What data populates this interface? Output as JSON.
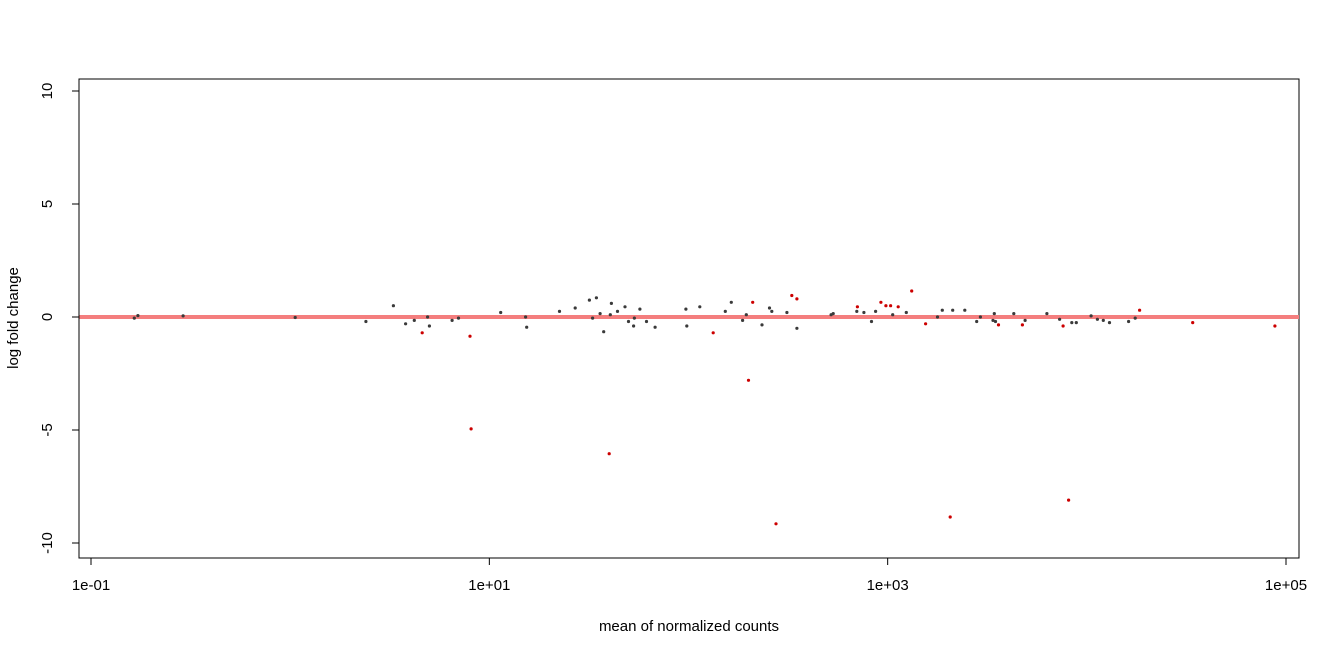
{
  "chart_data": {
    "type": "scatter",
    "title": "",
    "xlabel": "mean of normalized counts",
    "ylabel": "log fold change",
    "x_scale": "log10",
    "xlim": [
      0.1,
      100000
    ],
    "ylim": [
      -10,
      10
    ],
    "x_ticks": [
      {
        "value": 0.1,
        "label": "1e-01"
      },
      {
        "value": 10,
        "label": "1e+01"
      },
      {
        "value": 1000,
        "label": "1e+03"
      },
      {
        "value": 100000,
        "label": "1e+05"
      }
    ],
    "y_ticks": [
      {
        "value": 10,
        "label": "10"
      },
      {
        "value": 5,
        "label": "5"
      },
      {
        "value": 0,
        "label": "0"
      },
      {
        "value": -5,
        "label": "-5"
      },
      {
        "value": -10,
        "label": "-10"
      }
    ],
    "reference_line": {
      "y": 0,
      "color": "#f47e7e"
    },
    "grid": false,
    "legend": "none",
    "series": [
      {
        "color": "#3a3a3a",
        "points": [
          {
            "x": 0.165,
            "y": -0.05
          },
          {
            "x": 0.172,
            "y": 0.06
          },
          {
            "x": 0.29,
            "y": 0.05
          },
          {
            "x": 1.06,
            "y": -0.02
          },
          {
            "x": 2.4,
            "y": -0.2
          },
          {
            "x": 3.3,
            "y": 0.5
          },
          {
            "x": 3.8,
            "y": -0.3
          },
          {
            "x": 4.2,
            "y": -0.15
          },
          {
            "x": 4.9,
            "y": 0.0
          },
          {
            "x": 5.0,
            "y": -0.4
          },
          {
            "x": 6.5,
            "y": -0.15
          },
          {
            "x": 7.0,
            "y": -0.05
          },
          {
            "x": 11.4,
            "y": 0.2
          },
          {
            "x": 15.2,
            "y": 0.0
          },
          {
            "x": 15.4,
            "y": -0.45
          },
          {
            "x": 22.5,
            "y": 0.25
          },
          {
            "x": 27.0,
            "y": 0.4
          },
          {
            "x": 31.8,
            "y": 0.75
          },
          {
            "x": 33.0,
            "y": -0.05
          },
          {
            "x": 34.5,
            "y": 0.85
          },
          {
            "x": 36.0,
            "y": 0.15
          },
          {
            "x": 37.5,
            "y": -0.65
          },
          {
            "x": 40.5,
            "y": 0.1
          },
          {
            "x": 41.0,
            "y": 0.6
          },
          {
            "x": 44.0,
            "y": 0.25
          },
          {
            "x": 48.0,
            "y": 0.45
          },
          {
            "x": 50.0,
            "y": -0.2
          },
          {
            "x": 53.0,
            "y": -0.4
          },
          {
            "x": 53.5,
            "y": -0.05
          },
          {
            "x": 57.0,
            "y": 0.35
          },
          {
            "x": 61.5,
            "y": -0.2
          },
          {
            "x": 68.0,
            "y": -0.45
          },
          {
            "x": 97.0,
            "y": 0.35
          },
          {
            "x": 98.0,
            "y": -0.4
          },
          {
            "x": 114.0,
            "y": 0.45
          },
          {
            "x": 153.0,
            "y": 0.25
          },
          {
            "x": 164.0,
            "y": 0.65
          },
          {
            "x": 187.0,
            "y": -0.15
          },
          {
            "x": 195.0,
            "y": 0.1
          },
          {
            "x": 234.0,
            "y": -0.35
          },
          {
            "x": 255.0,
            "y": 0.4
          },
          {
            "x": 262.0,
            "y": 0.25
          },
          {
            "x": 312.0,
            "y": 0.2
          },
          {
            "x": 350.0,
            "y": -0.5
          },
          {
            "x": 520.0,
            "y": 0.1
          },
          {
            "x": 533.0,
            "y": 0.15
          },
          {
            "x": 700.0,
            "y": 0.25
          },
          {
            "x": 760.0,
            "y": 0.2
          },
          {
            "x": 830.0,
            "y": -0.2
          },
          {
            "x": 870.0,
            "y": 0.25
          },
          {
            "x": 1060.0,
            "y": 0.1
          },
          {
            "x": 1240.0,
            "y": 0.2
          },
          {
            "x": 1780.0,
            "y": 0.0
          },
          {
            "x": 1880.0,
            "y": 0.3
          },
          {
            "x": 2120.0,
            "y": 0.3
          },
          {
            "x": 2440.0,
            "y": 0.3
          },
          {
            "x": 2800.0,
            "y": -0.2
          },
          {
            "x": 2920.0,
            "y": 0.0
          },
          {
            "x": 3380.0,
            "y": -0.15
          },
          {
            "x": 3430.0,
            "y": 0.15
          },
          {
            "x": 3480.0,
            "y": -0.2
          },
          {
            "x": 4300.0,
            "y": 0.15
          },
          {
            "x": 4900.0,
            "y": -0.15
          },
          {
            "x": 6300.0,
            "y": 0.15
          },
          {
            "x": 7300.0,
            "y": -0.1
          },
          {
            "x": 8400.0,
            "y": -0.25
          },
          {
            "x": 8850.0,
            "y": -0.25
          },
          {
            "x": 10500.0,
            "y": 0.05
          },
          {
            "x": 11300.0,
            "y": -0.1
          },
          {
            "x": 12100.0,
            "y": -0.15
          },
          {
            "x": 13000.0,
            "y": -0.25
          },
          {
            "x": 16200.0,
            "y": -0.2
          },
          {
            "x": 17500.0,
            "y": -0.05
          }
        ]
      },
      {
        "color": "#cc0000",
        "points": [
          {
            "x": 4.6,
            "y": -0.7
          },
          {
            "x": 8.0,
            "y": -0.85
          },
          {
            "x": 8.1,
            "y": -4.95
          },
          {
            "x": 40.0,
            "y": -6.05
          },
          {
            "x": 133.0,
            "y": -0.7
          },
          {
            "x": 200.0,
            "y": -2.8
          },
          {
            "x": 210.0,
            "y": 0.65
          },
          {
            "x": 275.0,
            "y": -9.15
          },
          {
            "x": 330.0,
            "y": 0.95
          },
          {
            "x": 350.0,
            "y": 0.8
          },
          {
            "x": 705.0,
            "y": 0.45
          },
          {
            "x": 925.0,
            "y": 0.65
          },
          {
            "x": 980.0,
            "y": 0.5
          },
          {
            "x": 1035.0,
            "y": 0.5
          },
          {
            "x": 1130.0,
            "y": 0.45
          },
          {
            "x": 1320.0,
            "y": 1.15
          },
          {
            "x": 1550.0,
            "y": -0.3
          },
          {
            "x": 2060.0,
            "y": -8.85
          },
          {
            "x": 3600.0,
            "y": -0.35
          },
          {
            "x": 4750.0,
            "y": -0.35
          },
          {
            "x": 7600.0,
            "y": -0.4
          },
          {
            "x": 8100.0,
            "y": -8.1
          },
          {
            "x": 18400.0,
            "y": 0.3
          },
          {
            "x": 34000.0,
            "y": -0.25
          },
          {
            "x": 88000.0,
            "y": -0.4
          }
        ]
      }
    ]
  }
}
